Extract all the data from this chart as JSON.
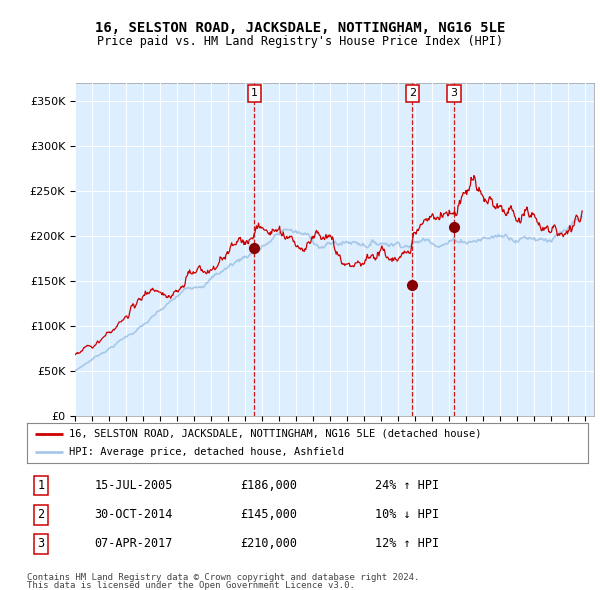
{
  "title": "16, SELSTON ROAD, JACKSDALE, NOTTINGHAM, NG16 5LE",
  "subtitle": "Price paid vs. HM Land Registry's House Price Index (HPI)",
  "legend_line1": "16, SELSTON ROAD, JACKSDALE, NOTTINGHAM, NG16 5LE (detached house)",
  "legend_line2": "HPI: Average price, detached house, Ashfield",
  "transactions": [
    {
      "num": 1,
      "date": "15-JUL-2005",
      "price": 186000,
      "pct": "24%",
      "dir": "↑",
      "x_year": 2005.54,
      "dot_y": 186000
    },
    {
      "num": 2,
      "date": "30-OCT-2014",
      "price": 145000,
      "pct": "10%",
      "dir": "↓",
      "x_year": 2014.83,
      "dot_y": 145000
    },
    {
      "num": 3,
      "date": "07-APR-2017",
      "price": 210000,
      "pct": "12%",
      "dir": "↑",
      "x_year": 2017.27,
      "dot_y": 210000
    }
  ],
  "footer1": "Contains HM Land Registry data © Crown copyright and database right 2024.",
  "footer2": "This data is licensed under the Open Government Licence v3.0.",
  "hpi_color": "#a8c8e8",
  "price_color": "#cc0000",
  "dot_color": "#880000",
  "vline_color": "#cc0000",
  "bg_color": "#ddeeff",
  "ylim": [
    0,
    370000
  ],
  "yticks": [
    0,
    50000,
    100000,
    150000,
    200000,
    250000,
    300000,
    350000
  ],
  "xlim_start": 1995.0,
  "xlim_end": 2025.5
}
